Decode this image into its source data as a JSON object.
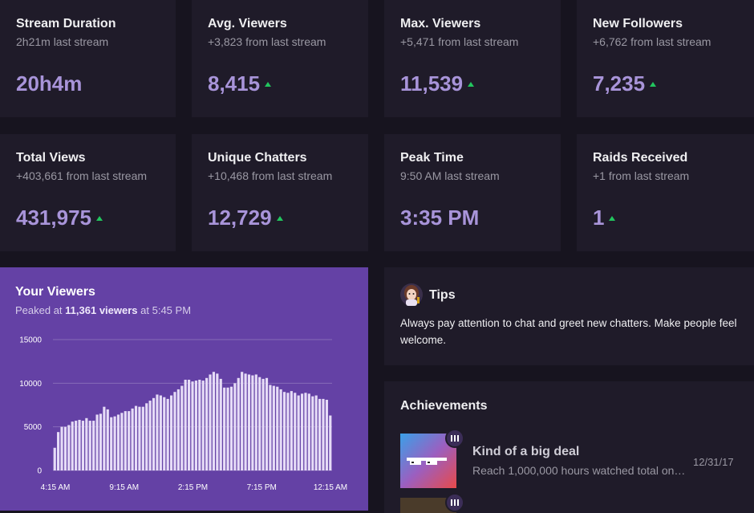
{
  "stats": [
    {
      "title": "Stream Duration",
      "sub": "2h21m last stream",
      "value": "20h4m",
      "trend": "none"
    },
    {
      "title": "Avg. Viewers",
      "sub": "+3,823 from last stream",
      "value": "8,415",
      "trend": "up"
    },
    {
      "title": "Max. Viewers",
      "sub": "+5,471 from last stream",
      "value": "11,539",
      "trend": "up"
    },
    {
      "title": "New Followers",
      "sub": "+6,762 from last stream",
      "value": "7,235",
      "trend": "up"
    },
    {
      "title": "Total Views",
      "sub": "+403,661 from last stream",
      "value": "431,975",
      "trend": "up"
    },
    {
      "title": "Unique Chatters",
      "sub": "+10,468 from last stream",
      "value": "12,729",
      "trend": "up"
    },
    {
      "title": "Peak Time",
      "sub": "9:50 AM last stream",
      "value": "3:35 PM",
      "trend": "none"
    },
    {
      "title": "Raids Received",
      "sub": "+1 from last stream",
      "value": "1",
      "trend": "up"
    }
  ],
  "viewers": {
    "title": "Your Viewers",
    "peak_prefix": "Peaked at",
    "peak_value": "11,361 viewers",
    "peak_suffix": "at 5:45 PM"
  },
  "tips": {
    "title": "Tips",
    "text": "Always pay attention to chat and greet new chatters. Make people feel welcome."
  },
  "achievements": {
    "title": "Achievements",
    "items": [
      {
        "name": "Kind of a big deal",
        "desc": "Reach 1,000,000 hours watched total on…",
        "date": "12/31/17"
      }
    ]
  },
  "colors": {
    "accent": "#a894d9",
    "chart_bg": "#6441a5",
    "up": "#22c55e",
    "card": "#1f1b29",
    "page": "#17141f"
  },
  "chart_data": {
    "type": "bar",
    "title": "",
    "xlabel": "",
    "ylabel": "",
    "ylim": [
      0,
      15000
    ],
    "yticks": [
      0,
      5000,
      10000,
      15000
    ],
    "xtick_labels": [
      "4:15 AM",
      "9:15 AM",
      "2:15 PM",
      "7:15 PM",
      "12:15 AM"
    ],
    "grid": true,
    "values": [
      2600,
      4400,
      5000,
      5000,
      5200,
      5600,
      5700,
      5800,
      5700,
      6000,
      5700,
      5700,
      6400,
      6500,
      7300,
      7000,
      6100,
      6200,
      6400,
      6600,
      6800,
      6800,
      7100,
      7400,
      7300,
      7300,
      7700,
      8000,
      8300,
      8700,
      8600,
      8400,
      8200,
      8600,
      9000,
      9300,
      9700,
      10400,
      10400,
      10200,
      10300,
      10400,
      10300,
      10600,
      11000,
      11300,
      11100,
      10500,
      9500,
      9500,
      9600,
      10000,
      10600,
      11300,
      11100,
      11000,
      10900,
      11000,
      10700,
      10500,
      10600,
      9800,
      9700,
      9600,
      9300,
      9000,
      8900,
      9100,
      8900,
      8600,
      8800,
      8900,
      8800,
      8500,
      8600,
      8200,
      8200,
      8100,
      6300
    ]
  }
}
